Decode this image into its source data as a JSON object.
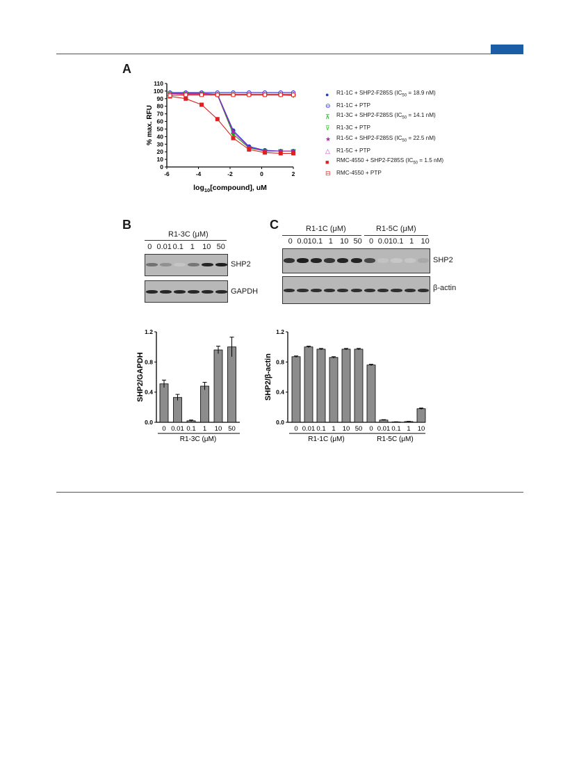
{
  "panels": {
    "a": "A",
    "b": "B",
    "c": "C"
  },
  "chart_data": [
    {
      "type": "line",
      "panel": "A",
      "ylabel": "% max. RFU",
      "xlabel": "log10[compound], uM",
      "xlim": [
        -6,
        2
      ],
      "ylim": [
        0,
        110
      ],
      "xticks": [
        -6,
        -4,
        -2,
        0,
        2
      ],
      "yticks": [
        0,
        10,
        20,
        30,
        40,
        50,
        60,
        70,
        80,
        90,
        100,
        110
      ],
      "x": [
        -5.8,
        -4.8,
        -3.8,
        -2.8,
        -1.8,
        -0.8,
        0.2,
        1.2,
        2.0
      ],
      "series": [
        {
          "name": "R1-1C + SHP2-F285S (IC50 = 18.9 nM)",
          "color": "#1f3fd6",
          "marker": "circle-filled",
          "values": [
            96,
            97,
            97,
            96,
            48,
            27,
            22,
            21,
            21
          ]
        },
        {
          "name": "R1-1C + PTP",
          "color": "#2b2bd6",
          "marker": "circle-open",
          "values": [
            98,
            98,
            98,
            98,
            98,
            98,
            98,
            98,
            98
          ]
        },
        {
          "name": "R1-3C + SHP2-F285S (IC50 = 14.1 nM)",
          "color": "#1aa31a",
          "marker": "tri-down-filled",
          "values": [
            97,
            97,
            97,
            95,
            43,
            25,
            21,
            21,
            21
          ]
        },
        {
          "name": "R1-3C + PTP",
          "color": "#2fbf2f",
          "marker": "tri-down-open",
          "values": [
            97,
            97,
            96,
            96,
            96,
            95,
            95,
            95,
            94
          ]
        },
        {
          "name": "R1-5C + SHP2-F285S (IC50 = 22.5 nM)",
          "color": "#b01fb0",
          "marker": "star",
          "values": [
            97,
            97,
            97,
            95,
            46,
            26,
            21,
            21,
            21
          ]
        },
        {
          "name": "R1-5C + PTP",
          "color": "#c03bc0",
          "marker": "tri-up-open",
          "values": [
            96,
            96,
            96,
            96,
            96,
            96,
            96,
            96,
            96
          ]
        },
        {
          "name": "RMC-4550 + SHP2-F285S (IC50 = 1.5 nM)",
          "color": "#e02020",
          "marker": "square-filled",
          "values": [
            93,
            90,
            82,
            63,
            38,
            23,
            19,
            18,
            18
          ]
        },
        {
          "name": "RMC-4550 + PTP",
          "color": "#e02020",
          "marker": "square-open",
          "values": [
            94,
            95,
            95,
            95,
            95,
            95,
            95,
            95,
            95
          ]
        }
      ]
    },
    {
      "type": "bar",
      "panel": "B",
      "ylabel": "SHP2/GAPDH",
      "xlabel": "R1-3C (μM)",
      "categories": [
        "0",
        "0.01",
        "0.1",
        "1",
        "10",
        "50"
      ],
      "values": [
        0.51,
        0.33,
        0.02,
        0.48,
        0.96,
        1.0
      ],
      "errors": [
        0.05,
        0.04,
        0.01,
        0.05,
        0.05,
        0.13
      ],
      "ylim": [
        0,
        1.2
      ],
      "yticks": [
        "0.0",
        "0.4",
        "0.8",
        "1.2"
      ]
    },
    {
      "type": "bar",
      "panel": "C",
      "ylabel": "SHP2/β-actin",
      "groups": [
        "R1-1C (μM)",
        "R1-5C (μM)"
      ],
      "categories": [
        "0",
        "0.01",
        "0.1",
        "1",
        "10",
        "50",
        "0",
        "0.01",
        "0.1",
        "1",
        "10"
      ],
      "values": [
        0.87,
        1.0,
        0.97,
        0.86,
        0.97,
        0.97,
        0.76,
        0.03,
        0.005,
        0.01,
        0.18
      ],
      "errors": [
        0.01,
        0.01,
        0.01,
        0.01,
        0.01,
        0.01,
        0.01,
        0.005,
        0.002,
        0.003,
        0.01
      ],
      "ylim": [
        0,
        1.2
      ],
      "yticks": [
        "0.0",
        "0.4",
        "0.8",
        "1.2"
      ]
    }
  ],
  "legend_marks": [
    "●",
    "⊖",
    "⊼",
    "⊽",
    "★",
    "△",
    "■",
    "⊟"
  ],
  "legend_parts": [
    {
      "pre": "R1-1C + SHP2-F285S (IC",
      "sub": "50",
      "post": " = 18.9 nM)"
    },
    {
      "pre": "R1-1C + PTP",
      "sub": "",
      "post": ""
    },
    {
      "pre": "R1-3C + SHP2-F285S (IC",
      "sub": "50",
      "post": " = 14.1 nM)"
    },
    {
      "pre": "R1-3C + PTP",
      "sub": "",
      "post": ""
    },
    {
      "pre": "R1-5C + SHP2-F285S (IC",
      "sub": "50",
      "post": " = 22.5 nM)"
    },
    {
      "pre": "R1-5C + PTP",
      "sub": "",
      "post": ""
    },
    {
      "pre": "RMC-4550 + SHP2-F285S (IC",
      "sub": "50",
      "post": " = 1.5 nM)"
    },
    {
      "pre": "RMC-4550 + PTP",
      "sub": "",
      "post": ""
    }
  ],
  "axisA": {
    "ylabel": "% max. RFU",
    "xlabel_pre": "log",
    "xlabel_sub": "10",
    "xlabel_post": "[compound], uM"
  },
  "blotB": {
    "title": "R1-3C (μM)",
    "lanes": [
      "0",
      "0.01",
      "0.1",
      "1",
      "10",
      "50"
    ],
    "label1": "SHP2",
    "label2": "GAPDH"
  },
  "blotC": {
    "title1": "R1-1C (μM)",
    "title2": "R1-5C (μM)",
    "lanes": [
      "0",
      "0.01",
      "0.1",
      "1",
      "10",
      "50",
      "0",
      "0.01",
      "0.1",
      "1",
      "10"
    ],
    "label1": "SHP2",
    "label2": "β-actin"
  }
}
